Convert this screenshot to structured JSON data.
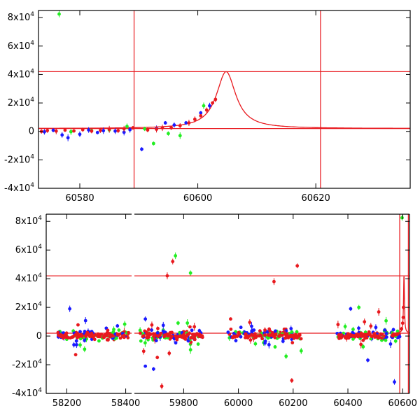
{
  "chart_data": [
    {
      "type": "scatter",
      "title": "",
      "xlabel": "",
      "ylabel": "",
      "xlim": [
        60573,
        60636
      ],
      "ylim": [
        -40000,
        85000
      ],
      "x_ticks": [
        60580,
        60600,
        60620
      ],
      "y_ticks": [
        {
          "value": -40000,
          "mantissa": "-4",
          "base": "x10",
          "exp": "4"
        },
        {
          "value": -20000,
          "mantissa": "-2",
          "base": "x10",
          "exp": "4"
        },
        {
          "value": 0,
          "mantissa": "0",
          "base": "",
          "exp": ""
        },
        {
          "value": 20000,
          "mantissa": "2",
          "base": "x10",
          "exp": "4"
        },
        {
          "value": 40000,
          "mantissa": "4",
          "base": "x10",
          "exp": "4"
        },
        {
          "value": 60000,
          "mantissa": "6",
          "base": "x10",
          "exp": "4"
        },
        {
          "value": 80000,
          "mantissa": "8",
          "base": "x10",
          "exp": "4"
        }
      ],
      "hlines": [
        42000,
        2000
      ],
      "vlines": [
        60589.2,
        60620.8
      ],
      "model_curve": {
        "peak_x": 60604.8,
        "peak_y": 42000,
        "baseline": 2000,
        "width": 2.0
      },
      "series": [
        {
          "color": "#1a1aff",
          "points": [
            [
              60574,
              -300
            ],
            [
              60575.5,
              800
            ],
            [
              60577,
              -2500
            ],
            [
              60578,
              -4500
            ],
            [
              60580,
              -2000
            ],
            [
              60581.5,
              1000
            ],
            [
              60583,
              -800
            ],
            [
              60584,
              500
            ],
            [
              60586,
              200
            ],
            [
              60587.5,
              -600
            ],
            [
              60588.5,
              1200
            ],
            [
              60590.5,
              -12500
            ],
            [
              60593,
              2000
            ],
            [
              60594.5,
              6000
            ],
            [
              60596,
              4500
            ],
            [
              60598,
              6000
            ],
            [
              60600.5,
              13000
            ],
            [
              60602,
              18000
            ]
          ]
        },
        {
          "color": "#22ee22",
          "points": [
            [
              60576.5,
              82500
            ],
            [
              60578.5,
              -200
            ],
            [
              60582,
              600
            ],
            [
              60585,
              1000
            ],
            [
              60588,
              3500
            ],
            [
              60591,
              1800
            ],
            [
              60592.5,
              -8500
            ],
            [
              60595,
              -1500
            ],
            [
              60597,
              -3000
            ],
            [
              60601,
              18000
            ]
          ]
        },
        {
          "color": "#e8191e",
          "points": [
            [
              60573.5,
              0
            ],
            [
              60574.5,
              600
            ],
            [
              60576,
              200
            ],
            [
              60577.5,
              900
            ],
            [
              60579,
              300
            ],
            [
              60580.5,
              1200
            ],
            [
              60582,
              200
            ],
            [
              60583.5,
              700
            ],
            [
              60585,
              1500
            ],
            [
              60586.5,
              500
            ],
            [
              60587.5,
              1800
            ],
            [
              60589,
              2500
            ],
            [
              60591.5,
              1000
            ],
            [
              60593,
              1500
            ],
            [
              60594,
              2500
            ],
            [
              60595.5,
              2500
            ],
            [
              60597,
              4000
            ],
            [
              60598.5,
              6000
            ],
            [
              60599.5,
              8500
            ],
            [
              60600.5,
              11000
            ],
            [
              60601.5,
              15000
            ],
            [
              60602.5,
              20000
            ],
            [
              60603,
              22500
            ]
          ]
        }
      ]
    },
    {
      "type": "scatter",
      "title": "",
      "xlabel": "",
      "ylabel": "",
      "ylim": [
        -40000,
        85000
      ],
      "broken_x_axis": true,
      "segments": [
        {
          "xlim": [
            58130,
            58420
          ],
          "x_ticks": [
            58200,
            58400
          ]
        },
        {
          "xlim": [
            59620,
            60625
          ],
          "x_ticks": [
            59800,
            60000,
            60200,
            60400,
            60600
          ]
        }
      ],
      "y_ticks": [
        {
          "value": -40000,
          "mantissa": "-4",
          "base": "x10",
          "exp": "4"
        },
        {
          "value": -20000,
          "mantissa": "-2",
          "base": "x10",
          "exp": "4"
        },
        {
          "value": 0,
          "mantissa": "0",
          "base": "",
          "exp": ""
        },
        {
          "value": 20000,
          "mantissa": "2",
          "base": "x10",
          "exp": "4"
        },
        {
          "value": 40000,
          "mantissa": "4",
          "base": "x10",
          "exp": "4"
        },
        {
          "value": 60000,
          "mantissa": "6",
          "base": "x10",
          "exp": "4"
        },
        {
          "value": 80000,
          "mantissa": "8",
          "base": "x10",
          "exp": "4"
        }
      ],
      "hlines": [
        42000,
        2000
      ],
      "vlines": [
        60589.2,
        60620.8
      ],
      "season_clusters": [
        {
          "x_range": [
            58170,
            58410
          ],
          "n": 110
        },
        {
          "x_range": [
            59640,
            59870
          ],
          "n": 110
        },
        {
          "x_range": [
            59960,
            60230
          ],
          "n": 110
        },
        {
          "x_range": [
            60360,
            60590
          ],
          "n": 90
        }
      ],
      "outliers": [
        {
          "color": "#22ee22",
          "x": 59770,
          "y": 56000
        },
        {
          "color": "#22ee22",
          "x": 59825,
          "y": 44000
        },
        {
          "color": "#e8191e",
          "x": 59740,
          "y": 42000
        },
        {
          "color": "#e8191e",
          "x": 59760,
          "y": 52000
        },
        {
          "color": "#e8191e",
          "x": 60215,
          "y": 49000
        },
        {
          "color": "#e8191e",
          "x": 60130,
          "y": 38000
        },
        {
          "color": "#e8191e",
          "x": 59720,
          "y": -35000
        },
        {
          "color": "#e8191e",
          "x": 60195,
          "y": -31000
        },
        {
          "color": "#1a1aff",
          "x": 59690,
          "y": -23000
        },
        {
          "color": "#1a1aff",
          "x": 59660,
          "y": -21000
        },
        {
          "color": "#1a1aff",
          "x": 60570,
          "y": -32000
        },
        {
          "color": "#22ee22",
          "x": 60598,
          "y": 82500
        },
        {
          "color": "#1a1aff",
          "x": 58210,
          "y": 19000
        },
        {
          "color": "#e8191e",
          "x": 58230,
          "y": -13000
        },
        {
          "color": "#1a1aff",
          "x": 60410,
          "y": 19000
        },
        {
          "color": "#22ee22",
          "x": 60440,
          "y": 20000
        }
      ],
      "peak_points": [
        [
          60596,
          5000
        ],
        [
          60600,
          9000
        ],
        [
          60602,
          13000
        ],
        [
          60603,
          20000
        ]
      ],
      "colors": {
        "blue": "#1a1aff",
        "green": "#22ee22",
        "red": "#e8191e"
      }
    }
  ]
}
